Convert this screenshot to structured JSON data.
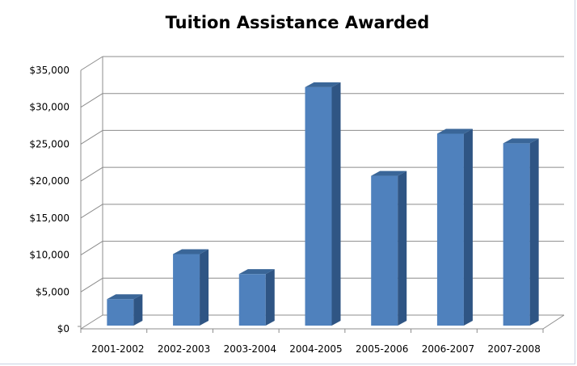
{
  "chart_data": {
    "type": "bar",
    "title": "Tuition Assistance Awarded",
    "xlabel": "",
    "ylabel": "",
    "categories": [
      "2001-2002",
      "2002-2003",
      "2003-2004",
      "2004-2005",
      "2005-2006",
      "2006-2007",
      "2007-2008"
    ],
    "values": [
      3800,
      9900,
      7200,
      32500,
      20500,
      26200,
      24900
    ],
    "ylim": [
      0,
      35000
    ],
    "y_ticks": [
      0,
      5000,
      10000,
      15000,
      20000,
      25000,
      30000,
      35000
    ],
    "y_tick_labels": [
      "$0",
      "$5,000",
      "$10,000",
      "$15,000",
      "$20,000",
      "$25,000",
      "$30,000",
      "$35,000"
    ],
    "grid": true,
    "legend": "none",
    "bar_style": "3d-column",
    "colors": {
      "bar_front": "#4f81bd",
      "bar_side": "#2f5584",
      "bar_top": "#3a6698",
      "gridline": "#8c8c8c"
    }
  }
}
